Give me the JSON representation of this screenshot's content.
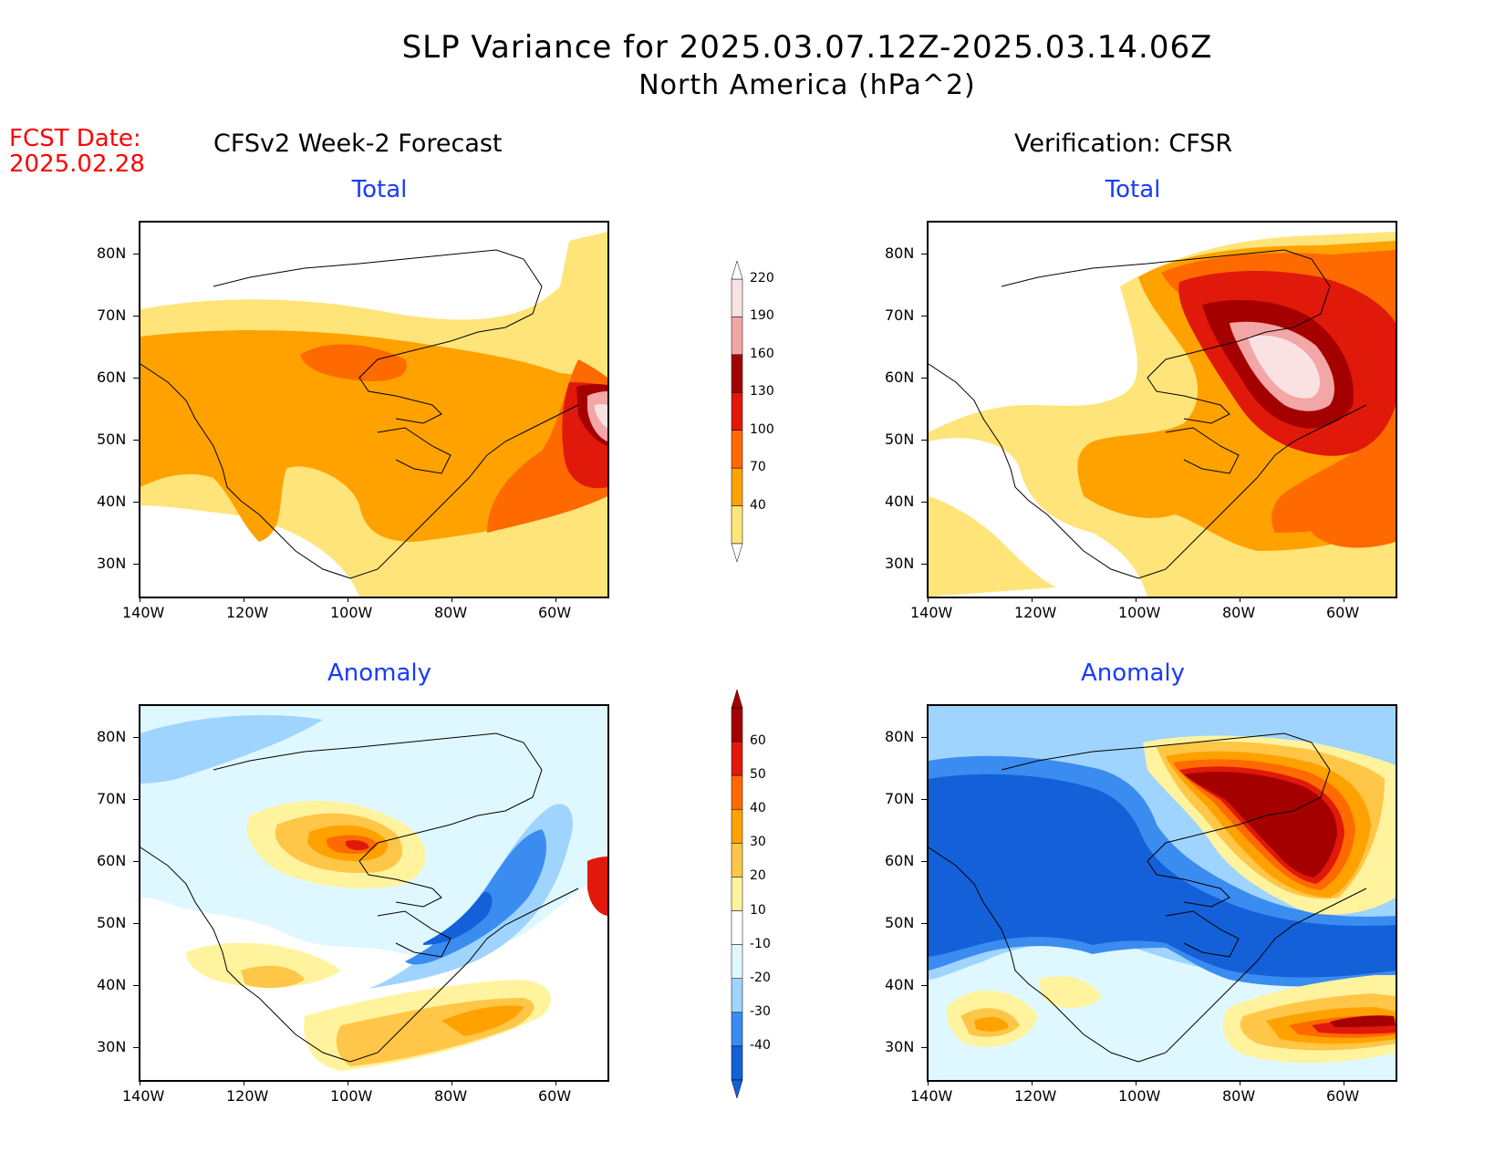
{
  "header": {
    "title": "SLP Variance for 2025.03.07.12Z-2025.03.14.06Z",
    "subtitle": "North America (hPa^2)",
    "fcst_date_label": "FCST Date:",
    "fcst_date_value": "2025.02.28"
  },
  "columns": {
    "left": "CFSv2 Week-2 Forecast",
    "right": "Verification: CFSR"
  },
  "panels": {
    "fc_total_title": "Total",
    "fc_anom_title": "Anomaly",
    "ver_total_title": "Total",
    "ver_anom_title": "Anomaly"
  },
  "axes": {
    "lat_ticks": [
      "80N",
      "70N",
      "60N",
      "50N",
      "40N",
      "30N"
    ],
    "lon_ticks": [
      "140W",
      "120W",
      "100W",
      "80W",
      "60W"
    ]
  },
  "colorbars": {
    "total": {
      "levels": [
        "40",
        "70",
        "100",
        "130",
        "160",
        "190",
        "220"
      ],
      "colors": [
        "#ffe47a",
        "#ffa200",
        "#ff6a00",
        "#e0190a",
        "#a50000",
        "#f3a6a6",
        "#fbe2e2"
      ]
    },
    "anomaly": {
      "levels": [
        "60",
        "50",
        "40",
        "30",
        "20",
        "10",
        "-10",
        "-20",
        "-30",
        "-40"
      ],
      "colors": [
        "#a50000",
        "#e0190a",
        "#ff6a00",
        "#ffa200",
        "#ffc648",
        "#fff39e",
        "#ffffff",
        "#dff8ff",
        "#9fd4ff",
        "#3a8cf0",
        "#1460d8"
      ]
    }
  }
}
